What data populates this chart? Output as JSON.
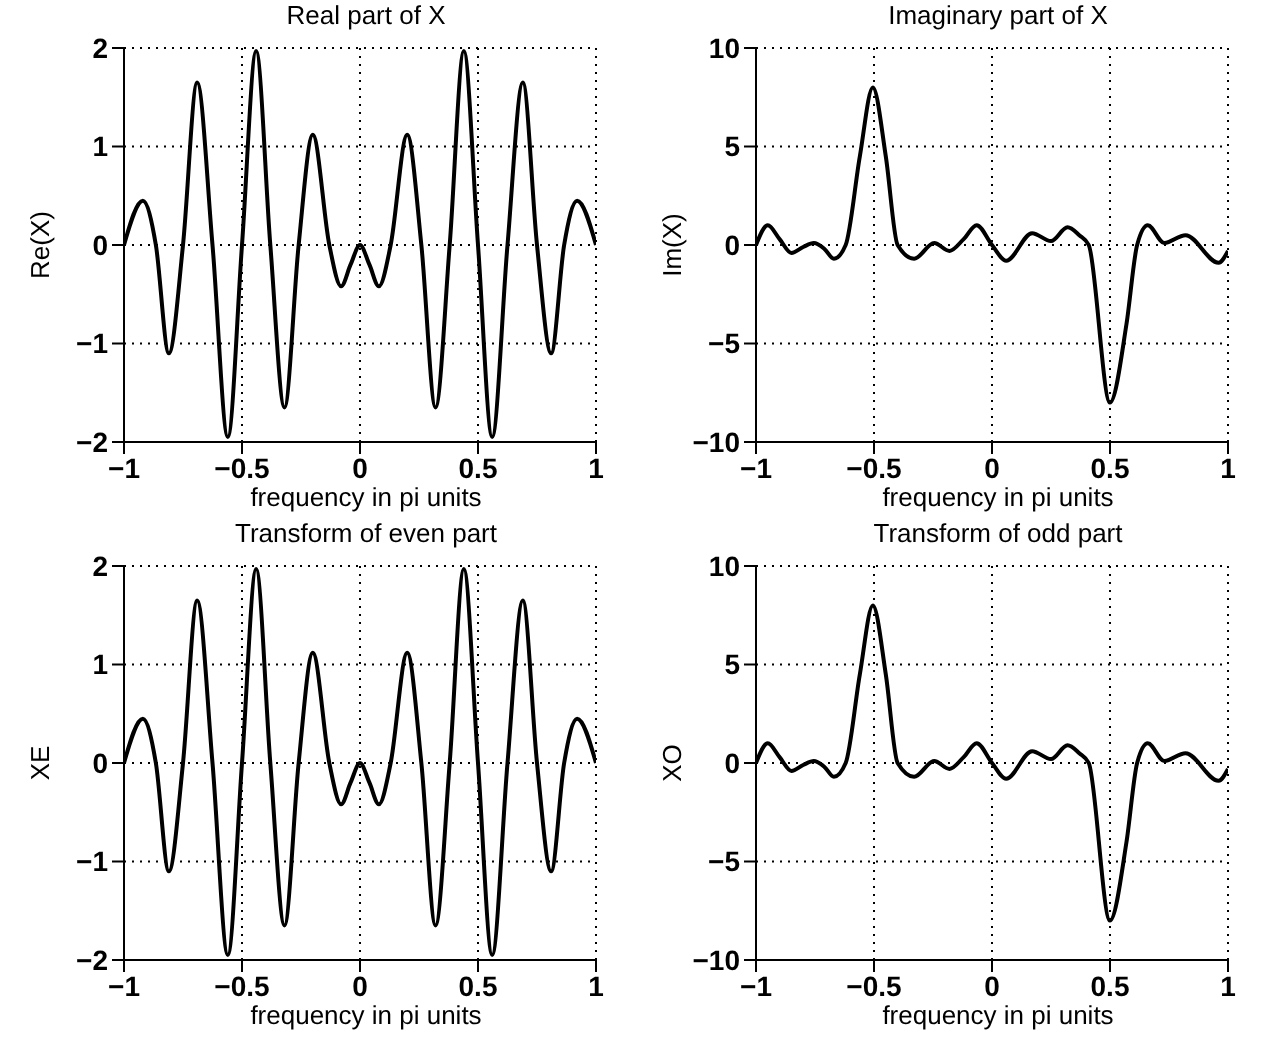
{
  "chart_data": [
    {
      "type": "line",
      "title": "Real part of X",
      "xlabel": "frequency in pi units",
      "ylabel": "Re(X)",
      "xlim": [
        -1,
        1
      ],
      "xticks": [
        -1,
        -0.5,
        0,
        0.5,
        1
      ],
      "ylim": [
        -2,
        2
      ],
      "yticks": [
        -2,
        -1,
        0,
        1,
        2
      ],
      "grid": true,
      "x": [
        -1,
        -0.92,
        -0.865,
        -0.81,
        -0.75,
        -0.69,
        -0.625,
        -0.56,
        -0.5,
        -0.44,
        -0.38,
        -0.32,
        -0.26,
        -0.2,
        -0.13,
        -0.08,
        -0.04,
        0,
        0.04,
        0.08,
        0.13,
        0.2,
        0.26,
        0.32,
        0.38,
        0.44,
        0.5,
        0.56,
        0.625,
        0.69,
        0.75,
        0.81,
        0.865,
        0.92,
        1
      ],
      "series": [
        {
          "color": "#000000",
          "values": [
            0,
            0.45,
            0,
            -1.1,
            0,
            1.65,
            0,
            -1.95,
            0,
            1.97,
            0,
            -1.65,
            0,
            1.12,
            0,
            -0.42,
            -0.2,
            0,
            -0.2,
            -0.42,
            0,
            1.12,
            0,
            -1.65,
            0,
            1.97,
            0,
            -1.95,
            0,
            1.65,
            0,
            -1.1,
            0,
            0.45,
            0
          ]
        }
      ]
    },
    {
      "type": "line",
      "title": "Imaginary part of X",
      "xlabel": "frequency in pi units",
      "ylabel": "Im(X)",
      "xlim": [
        -1,
        1
      ],
      "xticks": [
        -1,
        -0.5,
        0,
        0.5,
        1
      ],
      "ylim": [
        -10,
        10
      ],
      "yticks": [
        -10,
        -5,
        0,
        5,
        10
      ],
      "grid": true,
      "x": [
        -1,
        -0.95,
        -0.9,
        -0.85,
        -0.8,
        -0.755,
        -0.71,
        -0.67,
        -0.62,
        -0.56,
        -0.505,
        -0.45,
        -0.4,
        -0.33,
        -0.245,
        -0.18,
        -0.12,
        -0.065,
        0,
        0.06,
        0.17,
        0.25,
        0.32,
        0.37,
        0.41,
        0.5,
        0.57,
        0.615,
        0.66,
        0.73,
        0.82,
        0.96,
        1
      ],
      "series": [
        {
          "color": "#000000",
          "values": [
            0,
            1,
            0.3,
            -0.4,
            -0.1,
            0.1,
            -0.2,
            -0.7,
            0,
            4.5,
            8,
            4.5,
            0,
            -0.7,
            0.1,
            -0.3,
            0.3,
            1,
            0,
            -0.8,
            0.6,
            0.2,
            0.9,
            0.5,
            0,
            -8,
            -4,
            0,
            1,
            0.1,
            0.5,
            -0.9,
            -0.3
          ]
        }
      ]
    },
    {
      "type": "line",
      "title": "Transform of even part",
      "xlabel": "frequency in pi units",
      "ylabel": "XE",
      "xlim": [
        -1,
        1
      ],
      "xticks": [
        -1,
        -0.5,
        0,
        0.5,
        1
      ],
      "ylim": [
        -2,
        2
      ],
      "yticks": [
        -2,
        -1,
        0,
        1,
        2
      ],
      "grid": true,
      "x": [
        -1,
        -0.92,
        -0.865,
        -0.81,
        -0.75,
        -0.69,
        -0.625,
        -0.56,
        -0.5,
        -0.44,
        -0.38,
        -0.32,
        -0.26,
        -0.2,
        -0.13,
        -0.08,
        -0.04,
        0,
        0.04,
        0.08,
        0.13,
        0.2,
        0.26,
        0.32,
        0.38,
        0.44,
        0.5,
        0.56,
        0.625,
        0.69,
        0.75,
        0.81,
        0.865,
        0.92,
        1
      ],
      "series": [
        {
          "color": "#000000",
          "values": [
            0,
            0.45,
            0,
            -1.1,
            0,
            1.65,
            0,
            -1.95,
            0,
            1.97,
            0,
            -1.65,
            0,
            1.12,
            0,
            -0.42,
            -0.2,
            0,
            -0.2,
            -0.42,
            0,
            1.12,
            0,
            -1.65,
            0,
            1.97,
            0,
            -1.95,
            0,
            1.65,
            0,
            -1.1,
            0,
            0.45,
            0
          ]
        }
      ]
    },
    {
      "type": "line",
      "title": "Transform of odd part",
      "xlabel": "frequency in pi units",
      "ylabel": "XO",
      "xlim": [
        -1,
        1
      ],
      "xticks": [
        -1,
        -0.5,
        0,
        0.5,
        1
      ],
      "ylim": [
        -10,
        10
      ],
      "yticks": [
        -10,
        -5,
        0,
        5,
        10
      ],
      "grid": true,
      "x": [
        -1,
        -0.95,
        -0.9,
        -0.85,
        -0.8,
        -0.755,
        -0.71,
        -0.67,
        -0.62,
        -0.56,
        -0.505,
        -0.45,
        -0.4,
        -0.33,
        -0.245,
        -0.18,
        -0.12,
        -0.065,
        0,
        0.06,
        0.17,
        0.25,
        0.32,
        0.37,
        0.41,
        0.5,
        0.57,
        0.615,
        0.66,
        0.73,
        0.82,
        0.96,
        1
      ],
      "series": [
        {
          "color": "#000000",
          "values": [
            0,
            1,
            0.3,
            -0.4,
            -0.1,
            0.1,
            -0.2,
            -0.7,
            0,
            4.5,
            8,
            4.5,
            0,
            -0.7,
            0.1,
            -0.3,
            0.3,
            1,
            0,
            -0.8,
            0.6,
            0.2,
            0.9,
            0.5,
            0,
            -8,
            -4,
            0,
            1,
            0.1,
            0.5,
            -0.9,
            -0.3
          ]
        }
      ]
    }
  ]
}
